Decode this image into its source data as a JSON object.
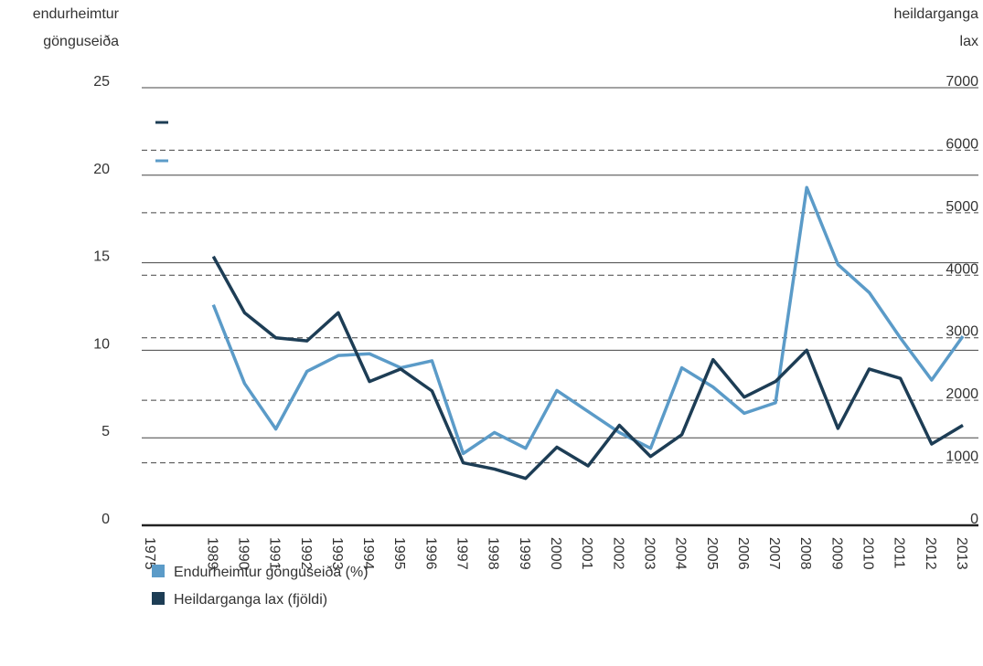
{
  "chart_data": {
    "type": "line",
    "y_label": [
      "endurheimtur",
      "gönguseiða"
    ],
    "y2_label": [
      "heildarganga",
      "lax"
    ],
    "categories": [
      "1975",
      null,
      "1989",
      "1990",
      "1991",
      "1992",
      "1993",
      "1994",
      "1995",
      "1996",
      "1997",
      "1998",
      "1999",
      "2000",
      "2001",
      "2002",
      "2003",
      "2004",
      "2005",
      "2006",
      "2007",
      "2008",
      "2009",
      "2010",
      "2011",
      "2012",
      "2013"
    ],
    "series": [
      {
        "name": "Endurheimtur gönguseiða (%)",
        "color": "#5b9bc8",
        "values": [
          null,
          null,
          12.6,
          8.1,
          5.5,
          8.8,
          9.7,
          9.8,
          9.0,
          9.4,
          4.1,
          5.3,
          4.4,
          7.7,
          6.5,
          5.3,
          4.4,
          9.0,
          7.9,
          6.4,
          7.0,
          19.3,
          14.9,
          13.3,
          10.7,
          8.3,
          10.8
        ]
      },
      {
        "name": "Heildarganga lax (fjöldi)",
        "color": "#1d3d55",
        "axis": "y2",
        "values": [
          null,
          null,
          4300,
          3400,
          3000,
          2950,
          3400,
          2300,
          2500,
          2150,
          1000,
          900,
          750,
          1250,
          950,
          1600,
          1100,
          1450,
          2650,
          2050,
          2300,
          2800,
          1550,
          2500,
          2350,
          1300,
          1600
        ]
      }
    ],
    "ylim": [
      0,
      25
    ],
    "yticks": [
      0,
      5,
      10,
      15,
      20,
      25
    ],
    "y2lim": [
      0,
      7000
    ],
    "y2ticks": [
      0,
      1000,
      2000,
      3000,
      4000,
      5000,
      6000,
      7000
    ],
    "grid": true
  }
}
